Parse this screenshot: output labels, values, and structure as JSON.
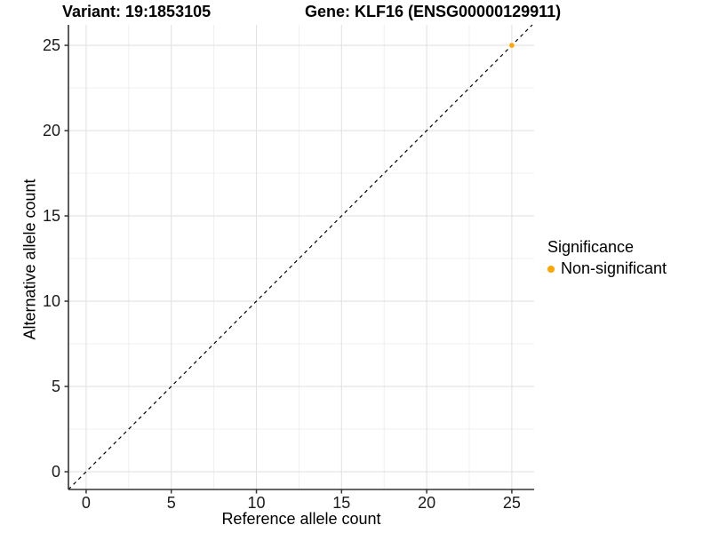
{
  "chart_data": {
    "type": "scatter",
    "titles": {
      "variant": "Variant: 19:1853105",
      "gene": "Gene: KLF16 (ENSG00000129911)"
    },
    "xlabel": "Reference allele count",
    "ylabel": "Alternative allele count",
    "x_ticks": [
      0,
      5,
      10,
      15,
      20,
      25
    ],
    "y_ticks": [
      0,
      5,
      10,
      15,
      20,
      25
    ],
    "x_minor_ticks": [
      2.5,
      7.5,
      12.5,
      17.5,
      22.5
    ],
    "y_minor_ticks": [
      2.5,
      7.5,
      12.5,
      17.5,
      22.5
    ],
    "xlim": [
      -1.04,
      26.31
    ],
    "ylim": [
      -1.04,
      26.2
    ],
    "grid": true,
    "points": [
      {
        "x": 25,
        "y": 25,
        "series": "Non-significant"
      }
    ],
    "reference_line": {
      "type": "identity",
      "slope": 1,
      "intercept": 0,
      "style": "dashed"
    },
    "legend": {
      "title": "Significance",
      "position": "right",
      "entries": [
        {
          "label": "Non-significant",
          "color": "#FFA500"
        }
      ]
    },
    "colors": {
      "point": "#FFA500",
      "grid_major": "#E2E2E2",
      "grid_minor": "#EFEFEF",
      "axis_line": "#333333",
      "tick_text": "#1A1A1A",
      "ref_line": "#000000",
      "background": "#FFFFFF"
    }
  }
}
